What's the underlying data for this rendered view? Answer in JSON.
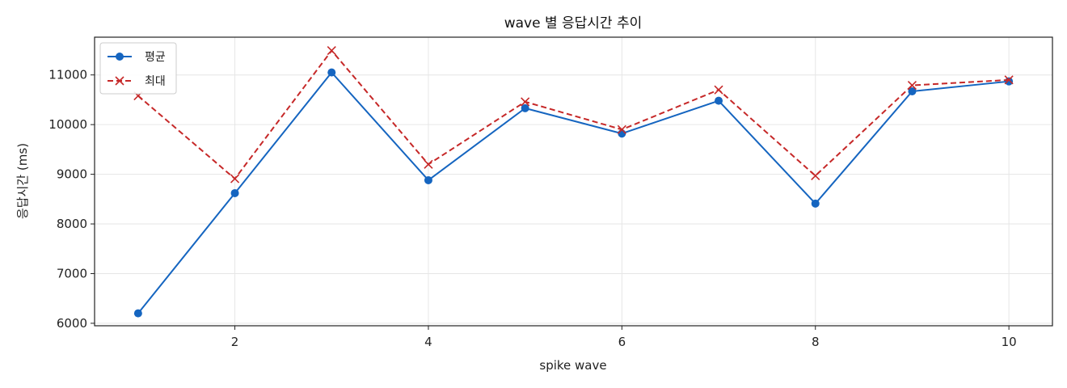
{
  "chart_data": {
    "type": "line",
    "title": "wave 별 응답시간 추이",
    "xlabel": "spike wave",
    "ylabel": "응답시간 (ms)",
    "x": [
      1,
      2,
      3,
      4,
      5,
      6,
      7,
      8,
      9,
      10
    ],
    "xlim": [
      0.55,
      10.45
    ],
    "ylim": [
      5950,
      11760
    ],
    "xticks": [
      2,
      4,
      6,
      8,
      10
    ],
    "yticks": [
      6000,
      7000,
      8000,
      9000,
      10000,
      11000
    ],
    "xtick_labels": [
      "2",
      "4",
      "6",
      "8",
      "10"
    ],
    "ytick_labels": [
      "6000",
      "7000",
      "8000",
      "9000",
      "10000",
      "11000"
    ],
    "grid": true,
    "legend_position": "top-left",
    "series": [
      {
        "name": "평균",
        "color": "#1565c0",
        "marker": "circle",
        "linestyle": "solid",
        "values": [
          6200,
          8620,
          11050,
          8880,
          10330,
          9820,
          10480,
          8410,
          10670,
          10870
        ]
      },
      {
        "name": "최대",
        "color": "#c62828",
        "marker": "x",
        "linestyle": "dashed",
        "values": [
          10580,
          8910,
          11490,
          9200,
          10460,
          9900,
          10700,
          8970,
          10790,
          10900
        ]
      }
    ]
  }
}
